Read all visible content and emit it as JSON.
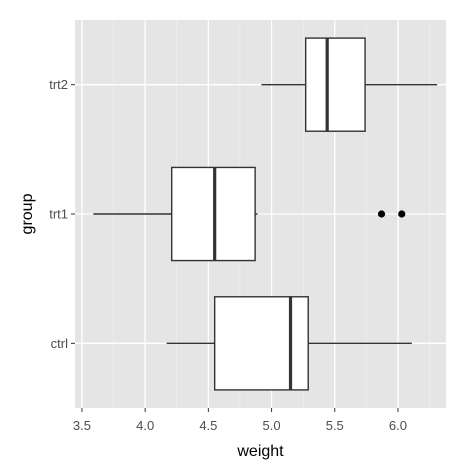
{
  "chart_data": {
    "type": "boxplot",
    "orientation": "horizontal",
    "xlabel": "weight",
    "ylabel": "group",
    "xlim": [
      3.445,
      6.38
    ],
    "x_ticks": [
      3.5,
      4.0,
      4.5,
      5.0,
      5.5,
      6.0
    ],
    "x_tick_labels": [
      "3.5",
      "4.0",
      "4.5",
      "5.0",
      "5.5",
      "6.0"
    ],
    "categories": [
      "ctrl",
      "trt1",
      "trt2"
    ],
    "boxes": [
      {
        "group": "ctrl",
        "whisker_low": 4.17,
        "q1": 4.55,
        "median": 5.15,
        "q3": 5.29,
        "whisker_high": 6.11,
        "outliers": []
      },
      {
        "group": "trt1",
        "whisker_low": 3.59,
        "q1": 4.21,
        "median": 4.55,
        "q3": 4.87,
        "whisker_high": 4.89,
        "outliers": [
          5.87,
          6.03
        ]
      },
      {
        "group": "trt2",
        "whisker_low": 4.92,
        "q1": 5.27,
        "median": 5.44,
        "q3": 5.74,
        "whisker_high": 6.31,
        "outliers": []
      }
    ],
    "grid": true,
    "colors": {
      "panel": "#e5e5e5",
      "grid_major": "#ffffff",
      "grid_minor": "#f2f2f2",
      "box_fill": "#ffffff",
      "box_stroke": "#333333"
    }
  }
}
